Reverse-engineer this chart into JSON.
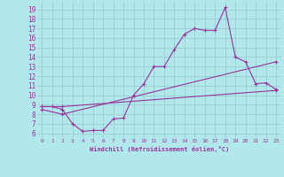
{
  "background_color": "#b0e8ec",
  "grid_color": "#9acdd4",
  "line_color": "#993399",
  "xlabel": "Windchill (Refroidissement éolien,°C)",
  "xlabel_color": "#993399",
  "tick_color": "#993399",
  "ylim": [
    5.5,
    19.8
  ],
  "xlim": [
    -0.5,
    23.5
  ],
  "yticks": [
    6,
    7,
    8,
    9,
    10,
    11,
    12,
    13,
    14,
    15,
    16,
    17,
    18,
    19
  ],
  "xticks": [
    0,
    1,
    2,
    3,
    4,
    5,
    6,
    7,
    8,
    9,
    10,
    11,
    12,
    13,
    14,
    15,
    16,
    17,
    18,
    19,
    20,
    21,
    22,
    23
  ],
  "series1_x": [
    0,
    1,
    2,
    3,
    4,
    5,
    6,
    7,
    8,
    9,
    10,
    11,
    12,
    13,
    14,
    15,
    16,
    17,
    18,
    19,
    20,
    21,
    22,
    23
  ],
  "series1_y": [
    8.8,
    8.8,
    8.5,
    7.0,
    6.2,
    6.3,
    6.3,
    7.5,
    7.6,
    10.0,
    11.2,
    13.0,
    13.0,
    14.8,
    16.4,
    17.0,
    16.8,
    16.8,
    19.2,
    14.0,
    13.5,
    11.2,
    11.3,
    10.6
  ],
  "series2_x": [
    0,
    2,
    23
  ],
  "series2_y": [
    8.8,
    8.8,
    10.5
  ],
  "series3_x": [
    0,
    2,
    23
  ],
  "series3_y": [
    8.5,
    8.0,
    13.5
  ]
}
